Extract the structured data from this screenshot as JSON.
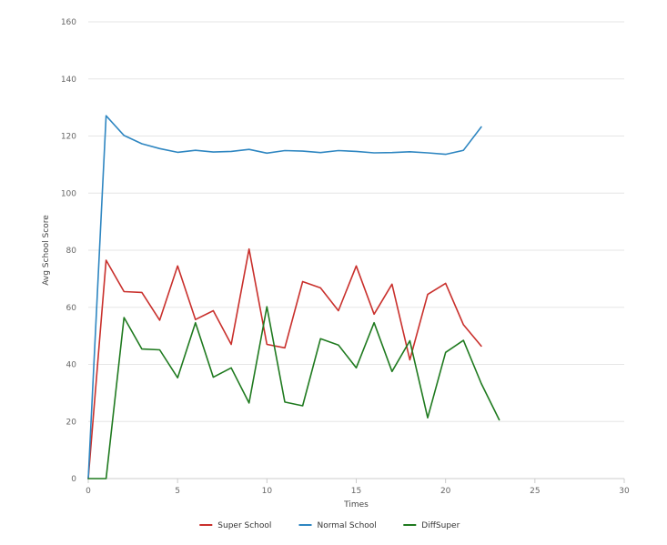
{
  "chart_data": {
    "type": "line",
    "title": "",
    "xlabel": "Times",
    "ylabel": "Avg School Score",
    "xlim": [
      0,
      30
    ],
    "ylim": [
      0,
      160
    ],
    "xticks": [
      0,
      5,
      10,
      15,
      20,
      25,
      30
    ],
    "yticks": [
      0,
      20,
      40,
      60,
      80,
      100,
      120,
      140,
      160
    ],
    "grid": "horizontal",
    "legend": "bottom-center",
    "series": [
      {
        "name": "Super School",
        "color": "#c9302c",
        "x": [
          0,
          1,
          2,
          3,
          4,
          5,
          6,
          7,
          8,
          9,
          10,
          11,
          12,
          13,
          14,
          15,
          16,
          17,
          18,
          19,
          20,
          21,
          22
        ],
        "values": [
          0,
          76.5,
          65.5,
          65.2,
          55.5,
          74.5,
          55.7,
          58.8,
          47,
          80.4,
          47,
          45.8,
          69,
          66.8,
          58.8,
          74.5,
          57.6,
          68.1,
          41.6,
          64.5,
          68.4,
          53.9,
          46.4
        ]
      },
      {
        "name": "Normal School",
        "color": "#2e86c1",
        "x": [
          0,
          1,
          2,
          3,
          4,
          5,
          6,
          7,
          8,
          9,
          10,
          11,
          12,
          13,
          14,
          15,
          16,
          17,
          18,
          19,
          20,
          21,
          22
        ],
        "values": [
          0,
          127.1,
          120.2,
          117.3,
          115.6,
          114.3,
          115,
          114.4,
          114.6,
          115.3,
          114,
          114.9,
          114.7,
          114.2,
          114.9,
          114.6,
          114.1,
          114.2,
          114.5,
          114.1,
          113.6,
          115,
          123.2
        ]
      },
      {
        "name": "DiffSuper",
        "color": "#1f7a1f",
        "x": [
          0,
          1,
          2,
          3,
          4,
          5,
          6,
          7,
          8,
          9,
          10,
          11,
          12,
          13,
          14,
          15,
          16,
          17,
          18,
          19,
          20,
          21,
          22,
          23
        ],
        "values": [
          0,
          0,
          56.4,
          45.4,
          45.1,
          35.3,
          54.6,
          35.5,
          38.8,
          26.5,
          60.2,
          26.8,
          25.5,
          49,
          46.8,
          38.8,
          54.6,
          37.5,
          48.3,
          21.3,
          44.2,
          48.4,
          33.3,
          20.6
        ]
      }
    ]
  }
}
